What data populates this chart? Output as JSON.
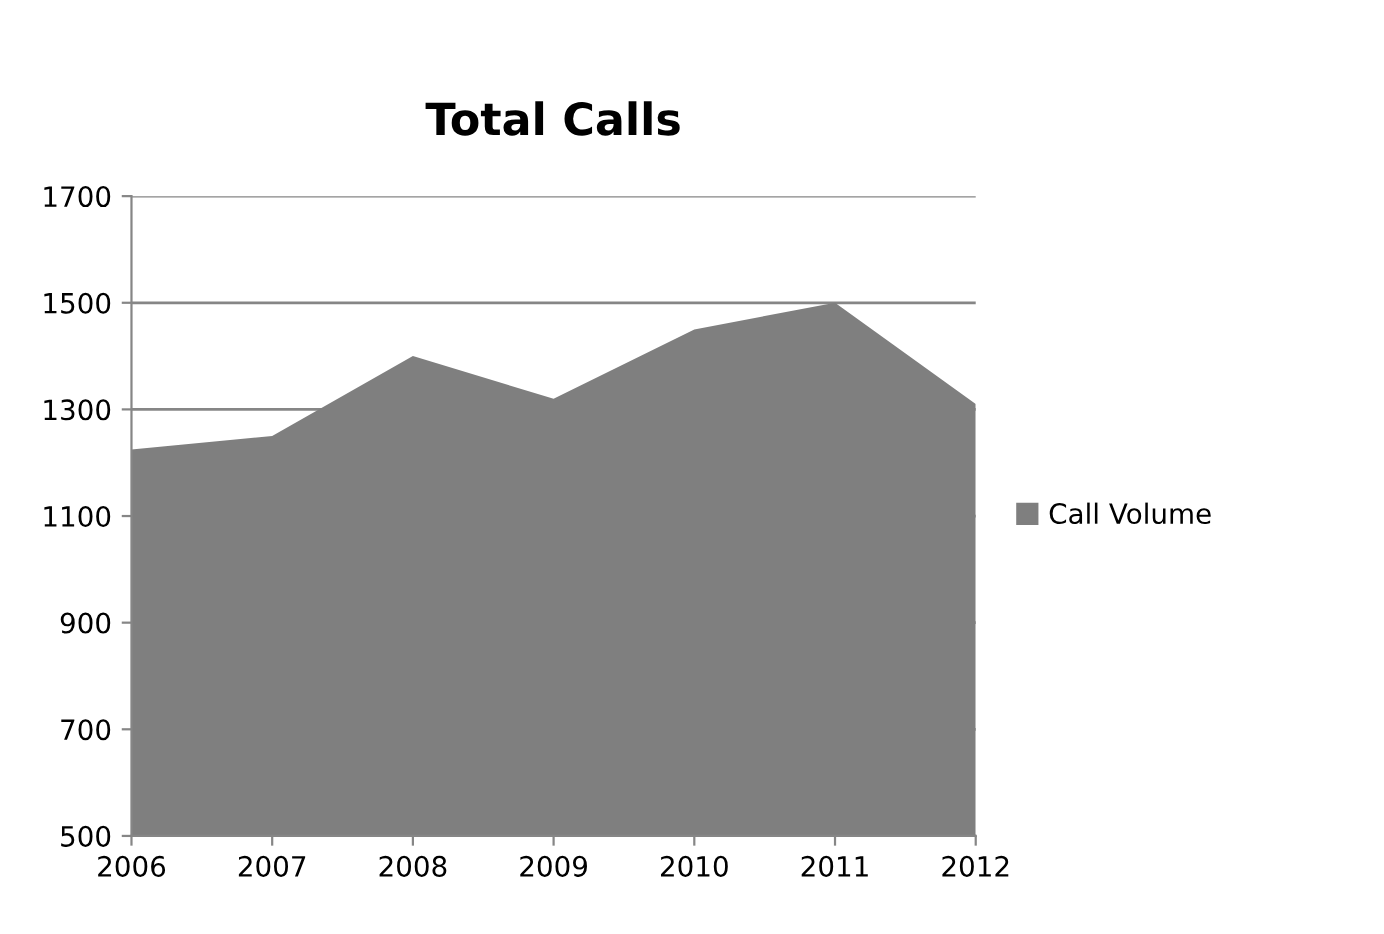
{
  "chart_data": {
    "type": "area",
    "title": "Total Calls",
    "categories": [
      "2006",
      "2007",
      "2008",
      "2009",
      "2010",
      "2011",
      "2012"
    ],
    "series": [
      {
        "name": "Call Volume",
        "color": "#7f7f7f",
        "values": [
          1225,
          1250,
          1400,
          1320,
          1450,
          1500,
          1310
        ]
      }
    ],
    "ylim": [
      500,
      1700
    ],
    "yticks": [
      500,
      700,
      900,
      1100,
      1300,
      1500,
      1700
    ],
    "grid": "y",
    "legend": "right"
  }
}
